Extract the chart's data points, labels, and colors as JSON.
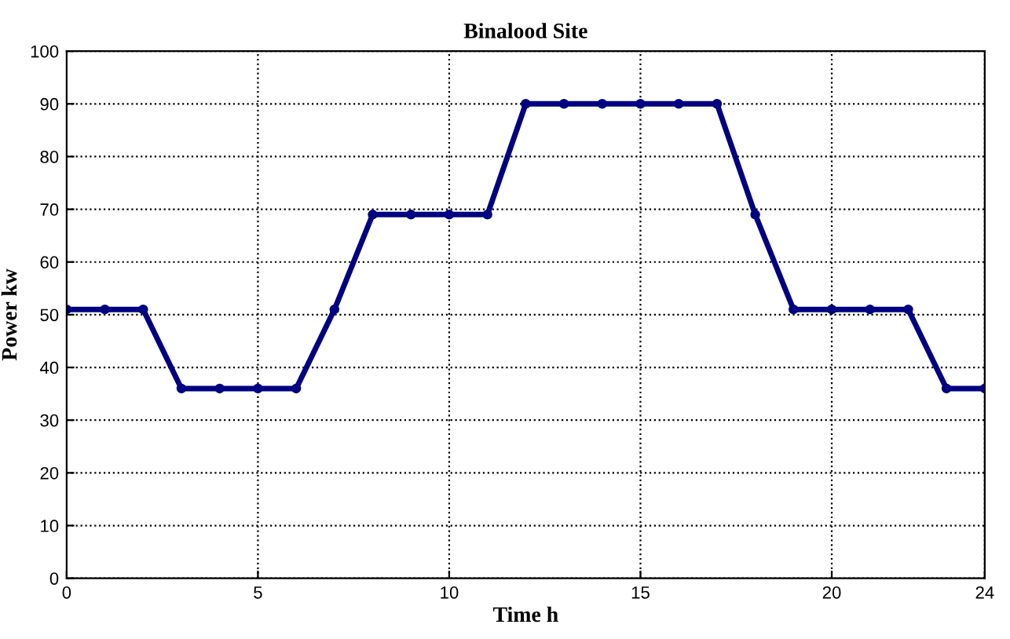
{
  "chart_data": {
    "type": "line",
    "title": "Binalood Site",
    "xlabel": "Time h",
    "ylabel": "Power kw",
    "x": [
      0,
      1,
      2,
      3,
      4,
      5,
      6,
      7,
      8,
      9,
      10,
      11,
      12,
      13,
      14,
      15,
      16,
      17,
      18,
      19,
      20,
      21,
      22,
      23,
      24
    ],
    "series": [
      {
        "color": "#000080",
        "values": [
          51,
          51,
          51,
          36,
          36,
          36,
          36,
          51,
          69,
          69,
          69,
          69,
          90,
          90,
          90,
          90,
          90,
          90,
          69,
          51,
          51,
          51,
          51,
          36,
          36
        ]
      }
    ],
    "xlim": [
      0,
      24
    ],
    "xticks": [
      0,
      5,
      10,
      15,
      20,
      24
    ],
    "ylim": [
      0,
      100
    ],
    "yticks": [
      0,
      10,
      20,
      30,
      40,
      50,
      60,
      70,
      80,
      90,
      100
    ],
    "grid": true,
    "marker": "circle",
    "line_style": "solid"
  }
}
